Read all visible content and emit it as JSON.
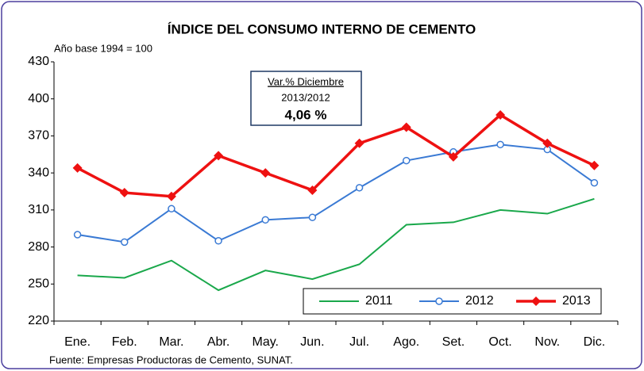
{
  "chart_data": {
    "type": "line",
    "title": "ÍNDICE DEL CONSUMO INTERNO DE CEMENTO",
    "subtitle": "Año base 1994  =  100",
    "annotation": [
      "Var.% Diciembre",
      "2013/2012",
      "4,06 %"
    ],
    "source": "Fuente: Empresas Productoras de Cemento, SUNAT.",
    "categories": [
      "Ene.",
      "Feb.",
      "Mar.",
      "Abr.",
      "May.",
      "Jun.",
      "Jul.",
      "Ago.",
      "Set.",
      "Oct.",
      "Nov.",
      "Dic."
    ],
    "series": [
      {
        "name": "2011",
        "color": "#1aa84b",
        "values": [
          257,
          255,
          269,
          245,
          261,
          254,
          266,
          298,
          300,
          310,
          307,
          319
        ]
      },
      {
        "name": "2012",
        "color": "#3a7ad4",
        "marker": "circle",
        "values": [
          290,
          284,
          311,
          285,
          302,
          304,
          328,
          350,
          357,
          363,
          359,
          332
        ]
      },
      {
        "name": "2013",
        "color": "#ee1111",
        "marker": "diamond",
        "values": [
          344,
          324,
          321,
          354,
          340,
          326,
          364,
          377,
          353,
          387,
          364,
          346
        ]
      }
    ],
    "ylim": [
      220,
      430
    ],
    "yticks": [
      220,
      250,
      280,
      310,
      340,
      370,
      400,
      430
    ],
    "legend": "lower right"
  }
}
